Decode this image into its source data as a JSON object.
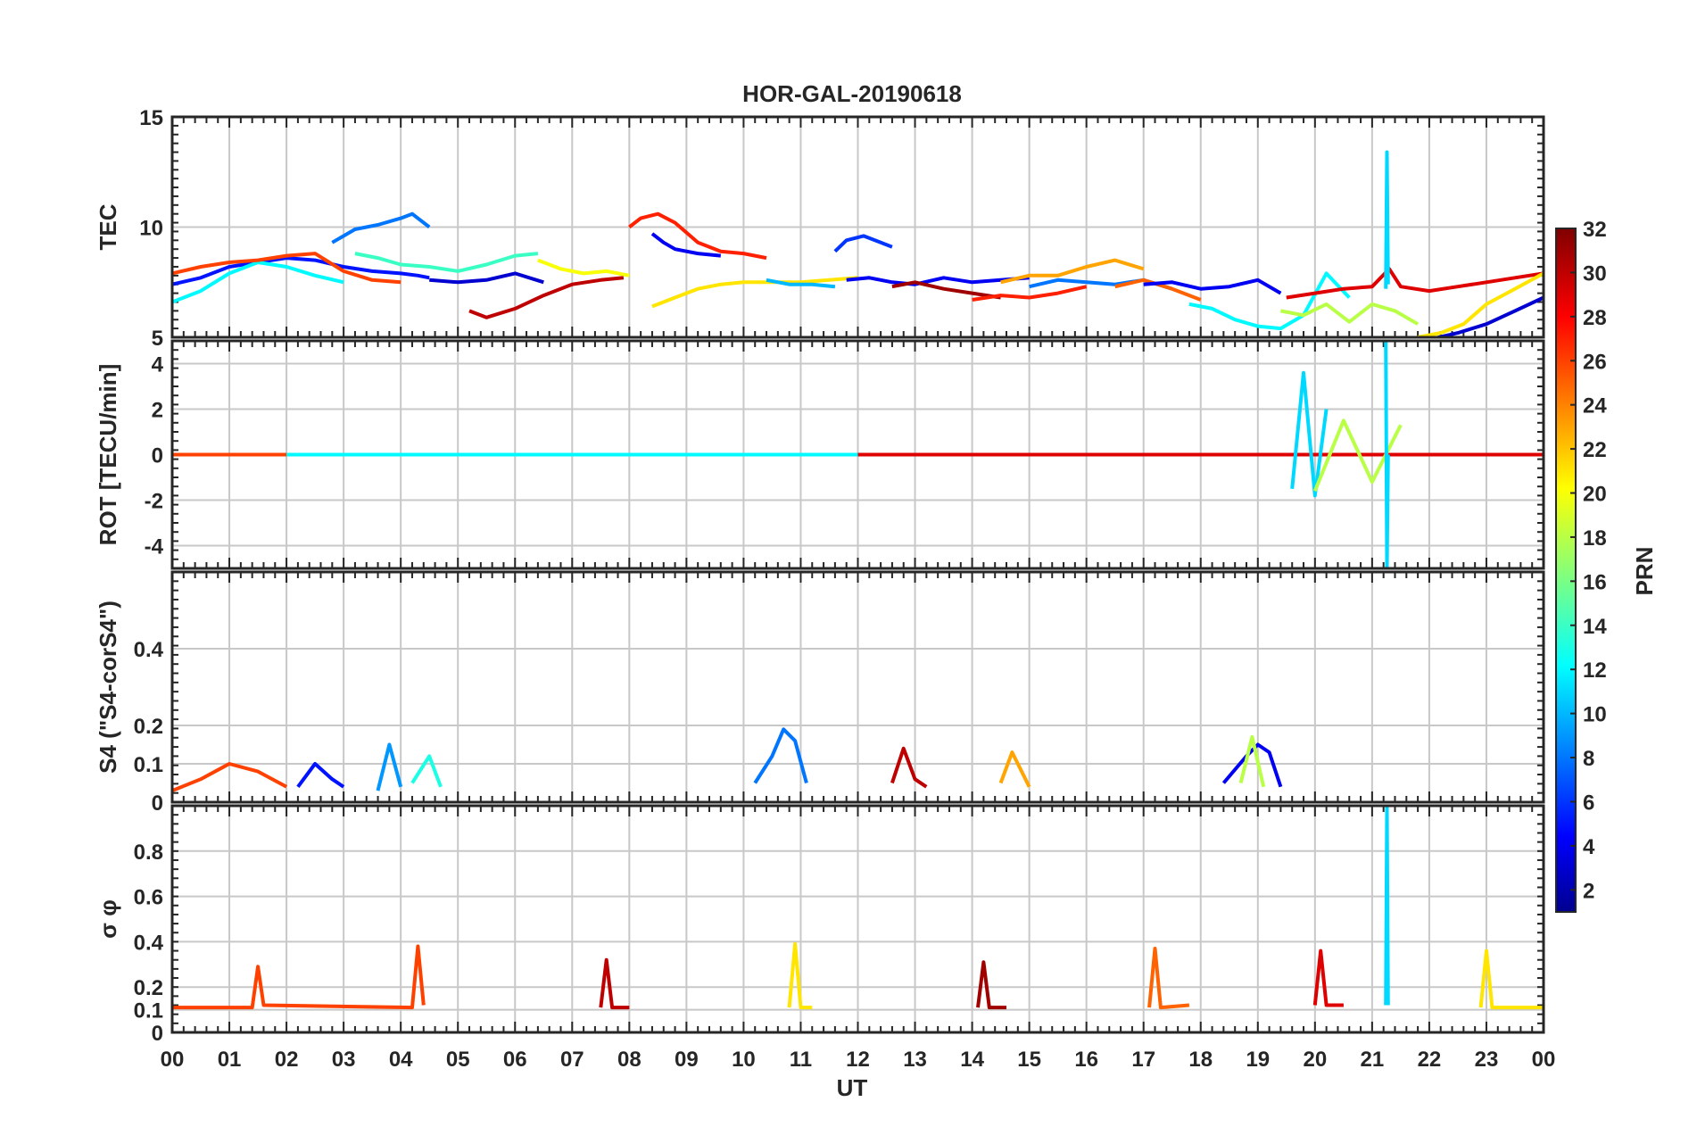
{
  "chart_data": {
    "type": "line",
    "title": "HOR-GAL-20190618",
    "xlabel": "UT",
    "x_ticks": [
      "00",
      "01",
      "02",
      "03",
      "04",
      "05",
      "06",
      "07",
      "08",
      "09",
      "10",
      "11",
      "12",
      "13",
      "14",
      "15",
      "16",
      "17",
      "18",
      "19",
      "20",
      "21",
      "22",
      "23",
      "00"
    ],
    "xlim": [
      0,
      24
    ],
    "grid": true,
    "panels": [
      {
        "id": "tec",
        "ylabel": "TEC",
        "ylim": [
          5,
          15
        ],
        "y_ticks": [
          "5",
          "10",
          "15"
        ],
        "y_tick_values": [
          5,
          10,
          15
        ],
        "series": [
          {
            "prn": 5,
            "x": [
              0,
              0.5,
              1,
              1.5,
              2,
              2.5,
              3,
              3.5,
              4,
              4.3,
              4.5
            ],
            "y": [
              7.4,
              7.7,
              8.2,
              8.4,
              8.6,
              8.5,
              8.2,
              8.0,
              7.9,
              7.8,
              7.7
            ]
          },
          {
            "prn": 8,
            "x": [
              2.8,
              3.2,
              3.6,
              4.0,
              4.2,
              4.5
            ],
            "y": [
              9.3,
              9.9,
              10.1,
              10.4,
              10.6,
              10.0
            ]
          },
          {
            "prn": 12,
            "x": [
              0,
              0.5,
              1,
              1.5,
              2,
              2.5,
              3
            ],
            "y": [
              6.6,
              7.1,
              7.9,
              8.4,
              8.2,
              7.8,
              7.5
            ]
          },
          {
            "prn": 14,
            "x": [
              3.2,
              3.6,
              4.0,
              4.5,
              5,
              5.5,
              6,
              6.4
            ],
            "y": [
              8.8,
              8.6,
              8.3,
              8.2,
              8.0,
              8.3,
              8.7,
              8.8
            ]
          },
          {
            "prn": 26,
            "x": [
              0,
              0.5,
              1,
              1.5,
              2,
              2.5,
              3,
              3.5,
              4
            ],
            "y": [
              7.9,
              8.2,
              8.4,
              8.5,
              8.7,
              8.8,
              8.0,
              7.6,
              7.5
            ]
          },
          {
            "prn": 3,
            "x": [
              4.5,
              5,
              5.5,
              6,
              6.5
            ],
            "y": [
              7.6,
              7.5,
              7.6,
              7.9,
              7.5
            ]
          },
          {
            "prn": 30,
            "x": [
              5.2,
              5.5,
              6,
              6.5,
              7,
              7.5,
              7.9
            ],
            "y": [
              6.2,
              5.9,
              6.3,
              6.9,
              7.4,
              7.6,
              7.7
            ]
          },
          {
            "prn": 20,
            "x": [
              6.4,
              6.8,
              7.2,
              7.6,
              8.0
            ],
            "y": [
              8.5,
              8.1,
              7.9,
              8.0,
              7.8
            ]
          },
          {
            "prn": 27,
            "x": [
              8.0,
              8.2,
              8.5,
              8.8,
              9.2,
              9.6,
              10,
              10.4
            ],
            "y": [
              10.0,
              10.4,
              10.6,
              10.2,
              9.3,
              8.9,
              8.8,
              8.6
            ]
          },
          {
            "prn": 4,
            "x": [
              8.4,
              8.6,
              8.8,
              9.2,
              9.6
            ],
            "y": [
              9.7,
              9.3,
              9.0,
              8.8,
              8.7
            ]
          },
          {
            "prn": 21,
            "x": [
              8.4,
              8.8,
              9.2,
              9.6,
              10,
              10.5,
              11,
              11.5,
              12
            ],
            "y": [
              6.4,
              6.8,
              7.2,
              7.4,
              7.5,
              7.5,
              7.5,
              7.6,
              7.7
            ]
          },
          {
            "prn": 10,
            "x": [
              10.4,
              10.8,
              11.2,
              11.6
            ],
            "y": [
              7.6,
              7.4,
              7.4,
              7.3
            ]
          },
          {
            "prn": 6,
            "x": [
              11.6,
              11.8,
              12.1,
              12.4,
              12.6
            ],
            "y": [
              8.9,
              9.4,
              9.6,
              9.3,
              9.1
            ]
          },
          {
            "prn": 4,
            "x": [
              11.8,
              12.2,
              12.6,
              13,
              13.5,
              14,
              14.5,
              15
            ],
            "y": [
              7.6,
              7.7,
              7.5,
              7.4,
              7.7,
              7.5,
              7.6,
              7.7
            ]
          },
          {
            "prn": 31,
            "x": [
              12.6,
              13,
              13.5,
              14,
              14.5
            ],
            "y": [
              7.3,
              7.5,
              7.2,
              7.0,
              6.8
            ]
          },
          {
            "prn": 27,
            "x": [
              14,
              14.5,
              15,
              15.5,
              16
            ],
            "y": [
              6.7,
              6.9,
              6.8,
              7.0,
              7.3
            ]
          },
          {
            "prn": 23,
            "x": [
              14.5,
              15,
              15.5,
              16,
              16.5,
              17
            ],
            "y": [
              7.5,
              7.8,
              7.8,
              8.2,
              8.5,
              8.1
            ]
          },
          {
            "prn": 8,
            "x": [
              15,
              15.5,
              16,
              16.5,
              17,
              17.5
            ],
            "y": [
              7.3,
              7.6,
              7.5,
              7.4,
              7.6,
              7.2
            ]
          },
          {
            "prn": 25,
            "x": [
              16.5,
              17,
              17.5,
              18
            ],
            "y": [
              7.3,
              7.6,
              7.2,
              6.7
            ]
          },
          {
            "prn": 4,
            "x": [
              17,
              17.5,
              18,
              18.5,
              19,
              19.4
            ],
            "y": [
              7.4,
              7.5,
              7.2,
              7.3,
              7.6,
              7.0
            ]
          },
          {
            "prn": 12,
            "x": [
              17.8,
              18.2,
              18.6,
              19,
              19.4,
              19.8,
              20.2,
              20.6
            ],
            "y": [
              6.5,
              6.3,
              5.8,
              5.5,
              5.4,
              6.0,
              7.9,
              6.8
            ]
          },
          {
            "prn": 29,
            "x": [
              19.5,
              20,
              20.5,
              21,
              21.3,
              21.5,
              22,
              22.5,
              23,
              23.5,
              24
            ],
            "y": [
              6.8,
              7.0,
              7.2,
              7.3,
              8.1,
              7.3,
              7.1,
              7.3,
              7.5,
              7.7,
              7.9
            ]
          },
          {
            "prn": 18,
            "x": [
              19.4,
              19.8,
              20.2,
              20.6,
              21,
              21.4,
              21.8
            ],
            "y": [
              6.2,
              6.0,
              6.5,
              5.7,
              6.5,
              6.2,
              5.6
            ]
          },
          {
            "prn": 21,
            "x": [
              21.8,
              22.2,
              22.6,
              23,
              23.5,
              24
            ],
            "y": [
              5.0,
              5.2,
              5.6,
              6.5,
              7.2,
              7.9
            ]
          },
          {
            "prn": 3,
            "x": [
              22,
              22.5,
              23,
              23.5,
              24
            ],
            "y": [
              4.9,
              5.2,
              5.6,
              6.2,
              6.8
            ]
          },
          {
            "prn": 11,
            "x": [
              21.24,
              21.26,
              21.28
            ],
            "y": [
              7.2,
              13.4,
              7.4
            ]
          }
        ]
      },
      {
        "id": "rot",
        "ylabel": "ROT [TECU/min]",
        "ylim": [
          -5,
          5
        ],
        "y_ticks": [
          "4",
          "2",
          "0",
          "-2",
          "-4"
        ],
        "y_tick_values": [
          4,
          2,
          0,
          -2,
          -4
        ],
        "series": [
          {
            "prn": 26,
            "x": [
              0,
              2,
              4,
              6,
              8,
              10
            ],
            "y": [
              0,
              0,
              0,
              0,
              0,
              0
            ]
          },
          {
            "prn": 12,
            "x": [
              2,
              6,
              10,
              14,
              18
            ],
            "y": [
              0,
              0,
              0,
              0,
              0
            ]
          },
          {
            "prn": 29,
            "x": [
              12,
              16,
              19.5,
              24
            ],
            "y": [
              0,
              0,
              0,
              0
            ]
          },
          {
            "prn": 11,
            "x": [
              19.6,
              19.8,
              20.0,
              20.2
            ],
            "y": [
              -1.5,
              3.6,
              -1.8,
              2.0
            ]
          },
          {
            "prn": 18,
            "x": [
              20,
              20.5,
              21,
              21.5
            ],
            "y": [
              -1.6,
              1.5,
              -1.2,
              1.3
            ]
          },
          {
            "prn": 11,
            "x": [
              21.24,
              21.26,
              21.28
            ],
            "y": [
              5.0,
              -5.0,
              0
            ]
          }
        ]
      },
      {
        "id": "s4",
        "ylabel": "S4 (\"S4-corS4\")",
        "ylim": [
          0,
          0.6
        ],
        "y_ticks": [
          "0",
          "0.1",
          "0.2",
          "0.4"
        ],
        "y_tick_values": [
          0,
          0.1,
          0.2,
          0.4
        ],
        "series": [
          {
            "prn": 26,
            "x": [
              0,
              0.5,
              1,
              1.5,
              2
            ],
            "y": [
              0.03,
              0.06,
              0.1,
              0.08,
              0.04
            ]
          },
          {
            "prn": 5,
            "x": [
              2.2,
              2.5,
              2.8,
              3
            ],
            "y": [
              0.04,
              0.1,
              0.06,
              0.04
            ]
          },
          {
            "prn": 9,
            "x": [
              3.6,
              3.8,
              4.0
            ],
            "y": [
              0.03,
              0.15,
              0.04
            ]
          },
          {
            "prn": 13,
            "x": [
              4.2,
              4.5,
              4.7
            ],
            "y": [
              0.05,
              0.12,
              0.04
            ]
          },
          {
            "prn": 8,
            "x": [
              10.2,
              10.5,
              10.7,
              10.9,
              11.1
            ],
            "y": [
              0.05,
              0.12,
              0.19,
              0.16,
              0.05
            ]
          },
          {
            "prn": 30,
            "x": [
              12.6,
              12.8,
              13,
              13.2
            ],
            "y": [
              0.05,
              0.14,
              0.06,
              0.04
            ]
          },
          {
            "prn": 23,
            "x": [
              14.5,
              14.7,
              15
            ],
            "y": [
              0.05,
              0.13,
              0.04
            ]
          },
          {
            "prn": 4,
            "x": [
              18.4,
              18.8,
              19,
              19.2,
              19.4
            ],
            "y": [
              0.05,
              0.12,
              0.15,
              0.13,
              0.04
            ]
          },
          {
            "prn": 18,
            "x": [
              18.7,
              18.9,
              19.1
            ],
            "y": [
              0.05,
              0.17,
              0.04
            ]
          }
        ]
      },
      {
        "id": "sigma_phi",
        "ylabel": "σ φ",
        "ylim": [
          0,
          1
        ],
        "y_ticks": [
          "0",
          "0.1",
          "0.2",
          "0.4",
          "0.6",
          "0.8"
        ],
        "y_tick_values": [
          0,
          0.1,
          0.2,
          0.4,
          0.6,
          0.8
        ],
        "series": [
          {
            "prn": 26,
            "x": [
              0,
              1.4,
              1.5,
              1.6,
              4.2,
              4.3,
              4.4
            ],
            "y": [
              0.11,
              0.11,
              0.29,
              0.12,
              0.11,
              0.38,
              0.12
            ]
          },
          {
            "prn": 30,
            "x": [
              7.5,
              7.6,
              7.7,
              8
            ],
            "y": [
              0.11,
              0.32,
              0.11,
              0.11
            ]
          },
          {
            "prn": 21,
            "x": [
              10.8,
              10.9,
              11,
              11.2
            ],
            "y": [
              0.11,
              0.39,
              0.11,
              0.11
            ]
          },
          {
            "prn": 31,
            "x": [
              14.1,
              14.2,
              14.3,
              14.6
            ],
            "y": [
              0.11,
              0.31,
              0.11,
              0.11
            ]
          },
          {
            "prn": 25,
            "x": [
              17.1,
              17.2,
              17.3,
              17.8
            ],
            "y": [
              0.11,
              0.37,
              0.11,
              0.12
            ]
          },
          {
            "prn": 29,
            "x": [
              20,
              20.1,
              20.2,
              20.5
            ],
            "y": [
              0.12,
              0.36,
              0.12,
              0.12
            ]
          },
          {
            "prn": 11,
            "x": [
              21.24,
              21.26,
              21.28
            ],
            "y": [
              0.12,
              1.0,
              0.12
            ]
          },
          {
            "prn": 21,
            "x": [
              22.9,
              23,
              23.1,
              24
            ],
            "y": [
              0.11,
              0.36,
              0.11,
              0.11
            ]
          }
        ]
      }
    ],
    "colorbar": {
      "label": "PRN",
      "range": [
        1,
        32
      ],
      "ticks": [
        "2",
        "4",
        "6",
        "8",
        "10",
        "12",
        "14",
        "16",
        "18",
        "20",
        "22",
        "24",
        "26",
        "28",
        "30",
        "32"
      ],
      "tick_values": [
        2,
        4,
        6,
        8,
        10,
        12,
        14,
        16,
        18,
        20,
        22,
        24,
        26,
        28,
        30,
        32
      ],
      "colormap": "jet"
    }
  }
}
